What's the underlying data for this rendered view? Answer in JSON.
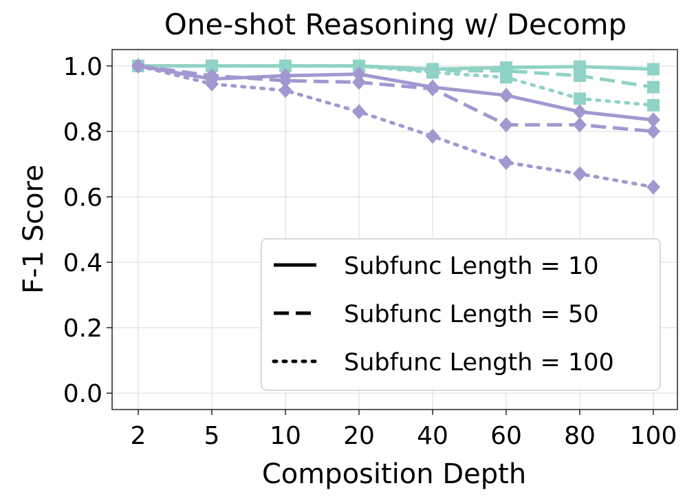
{
  "chart_data": {
    "type": "line",
    "title": "One-shot Reasoning w/ Decomp",
    "xlabel": "Composition Depth",
    "ylabel": "F-1 Score",
    "categories": [
      "2",
      "5",
      "10",
      "20",
      "40",
      "60",
      "80",
      "100"
    ],
    "ylim": [
      0.0,
      1.0
    ],
    "yticks": [
      "0.0",
      "0.2",
      "0.4",
      "0.6",
      "0.8",
      "1.0"
    ],
    "grid": true,
    "legend_position": "lower-right",
    "legend": [
      {
        "label": "Subfunc Length = 10",
        "dash": "solid"
      },
      {
        "label": "Subfunc Length = 50",
        "dash": "dashed"
      },
      {
        "label": "Subfunc Length = 100",
        "dash": "dotted"
      }
    ],
    "colors": {
      "teal": "#8fd3c6",
      "purple": "#a397d0"
    },
    "series": [
      {
        "color": "teal",
        "marker": "square",
        "dash": "solid",
        "values": [
          1.0,
          1.0,
          1.0,
          1.0,
          0.99,
          0.995,
          0.998,
          0.99
        ]
      },
      {
        "color": "teal",
        "marker": "square",
        "dash": "dashed",
        "values": [
          1.0,
          1.0,
          1.0,
          1.0,
          0.985,
          0.985,
          0.97,
          0.935
        ]
      },
      {
        "color": "teal",
        "marker": "square",
        "dash": "dotted",
        "values": [
          1.0,
          1.0,
          1.0,
          1.0,
          0.98,
          0.965,
          0.9,
          0.88
        ]
      },
      {
        "color": "purple",
        "marker": "diamond",
        "dash": "solid",
        "values": [
          1.0,
          0.96,
          0.97,
          0.975,
          0.935,
          0.91,
          0.86,
          0.835
        ]
      },
      {
        "color": "purple",
        "marker": "diamond",
        "dash": "dashed",
        "values": [
          1.0,
          0.97,
          0.955,
          0.95,
          0.93,
          0.82,
          0.82,
          0.8
        ]
      },
      {
        "color": "purple",
        "marker": "diamond",
        "dash": "dotted",
        "values": [
          1.0,
          0.945,
          0.925,
          0.86,
          0.785,
          0.705,
          0.67,
          0.63
        ]
      }
    ]
  }
}
